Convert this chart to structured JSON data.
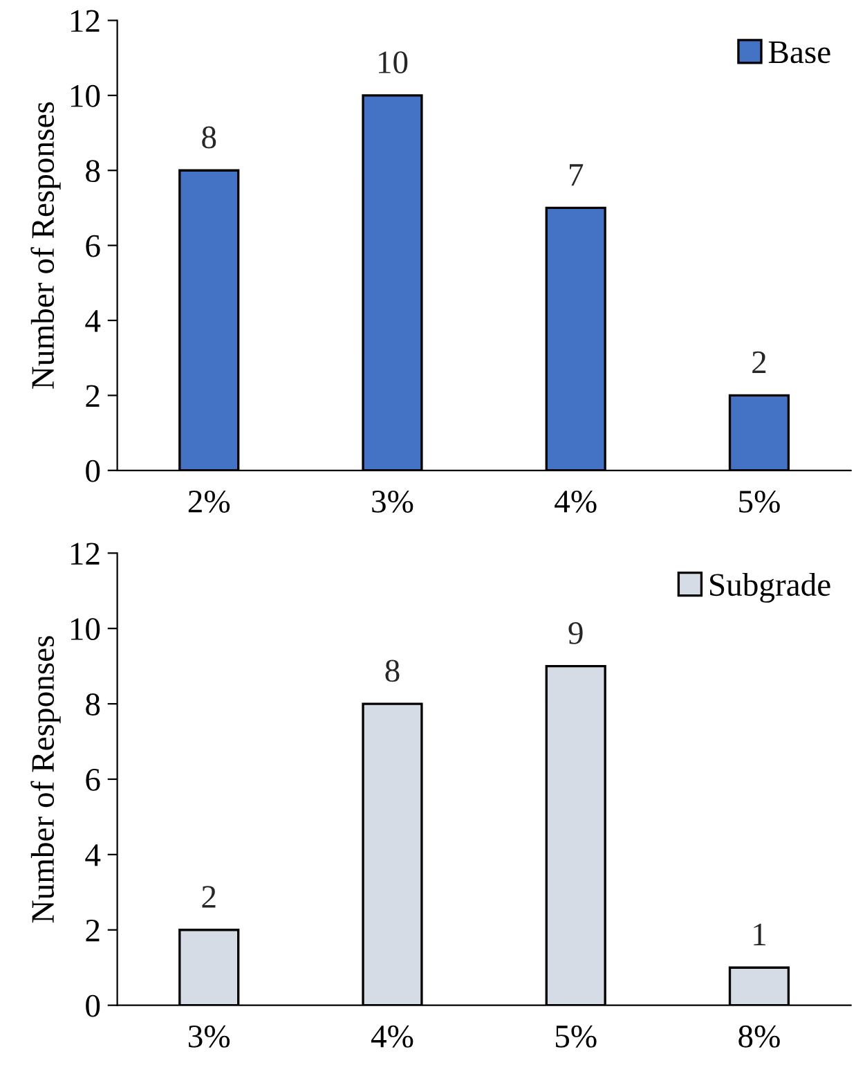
{
  "chart_data": [
    {
      "type": "bar",
      "categories": [
        "2%",
        "3%",
        "4%",
        "5%"
      ],
      "ylabel": "Number of Responses",
      "ylim": [
        0,
        12
      ],
      "yticks": [
        0,
        2,
        4,
        6,
        8,
        10,
        12
      ],
      "data_labels": true,
      "grid": false,
      "legend": "top right",
      "series": [
        {
          "name": "Base",
          "color": "#4472c4",
          "values": [
            8,
            10,
            7,
            2
          ]
        }
      ]
    },
    {
      "type": "bar",
      "categories": [
        "3%",
        "4%",
        "5%",
        "8%"
      ],
      "ylabel": "Number of Responses",
      "ylim": [
        0,
        12
      ],
      "yticks": [
        0,
        2,
        4,
        6,
        8,
        10,
        12
      ],
      "data_labels": true,
      "grid": false,
      "legend": "top right",
      "series": [
        {
          "name": "Subgrade",
          "color": "#d6dce5",
          "values": [
            2,
            8,
            9,
            1
          ]
        }
      ]
    }
  ]
}
